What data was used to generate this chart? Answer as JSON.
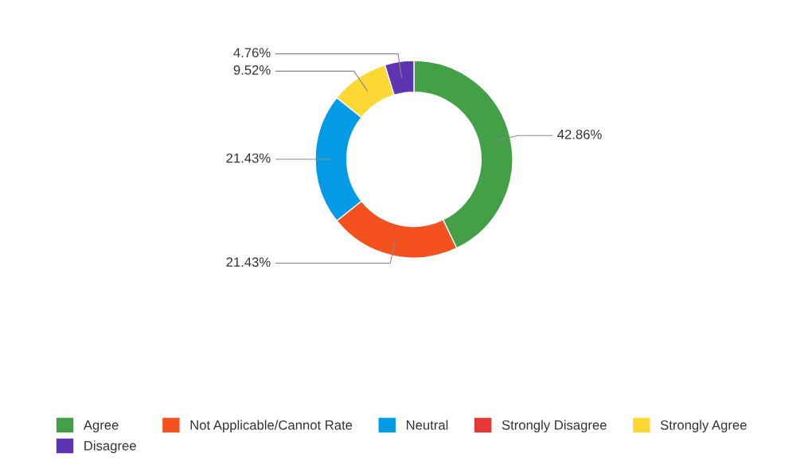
{
  "chart_data": {
    "type": "donut",
    "categories": [
      "Agree",
      "Not Applicable/Cannot Rate",
      "Neutral",
      "Strongly Disagree",
      "Strongly Agree",
      "Disagree"
    ],
    "values": [
      42.86,
      21.43,
      21.43,
      0,
      9.52,
      4.76
    ],
    "value_labels": [
      "42.86%",
      "21.43%",
      "21.43%",
      null,
      "9.52%",
      "4.76%"
    ],
    "colors": [
      "#43a047",
      "#f4511e",
      "#039be5",
      "#e53935",
      "#fdd835",
      "#5e35b1"
    ],
    "legend": "bottom"
  }
}
